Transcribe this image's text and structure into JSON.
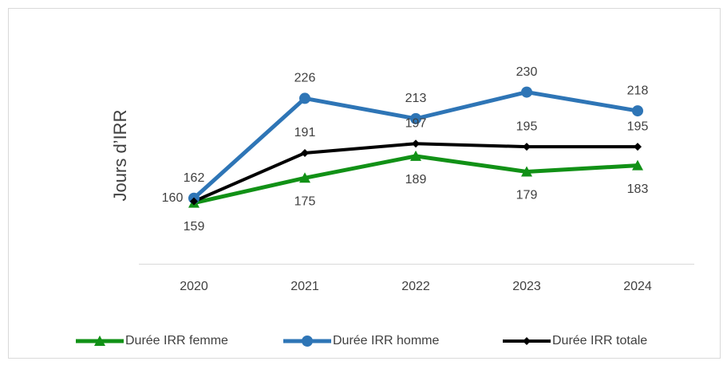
{
  "chart_data": {
    "type": "line",
    "y_label": "Jours d’IRR",
    "categories": [
      "2020",
      "2021",
      "2022",
      "2023",
      "2024"
    ],
    "series": [
      {
        "name": "Durée IRR femme",
        "color": "#119116",
        "marker": "triangle",
        "values": [
          159,
          175,
          189,
          179,
          183
        ]
      },
      {
        "name": "Durée IRR homme",
        "color": "#2e75b6",
        "marker": "circle",
        "values": [
          162,
          226,
          213,
          230,
          218
        ]
      },
      {
        "name": "Durée IRR totale",
        "color": "#000000",
        "marker": "diamond",
        "values": [
          160,
          191,
          197,
          195,
          195
        ]
      }
    ],
    "ylim": [
      120,
      240
    ],
    "legend": "bottom"
  }
}
